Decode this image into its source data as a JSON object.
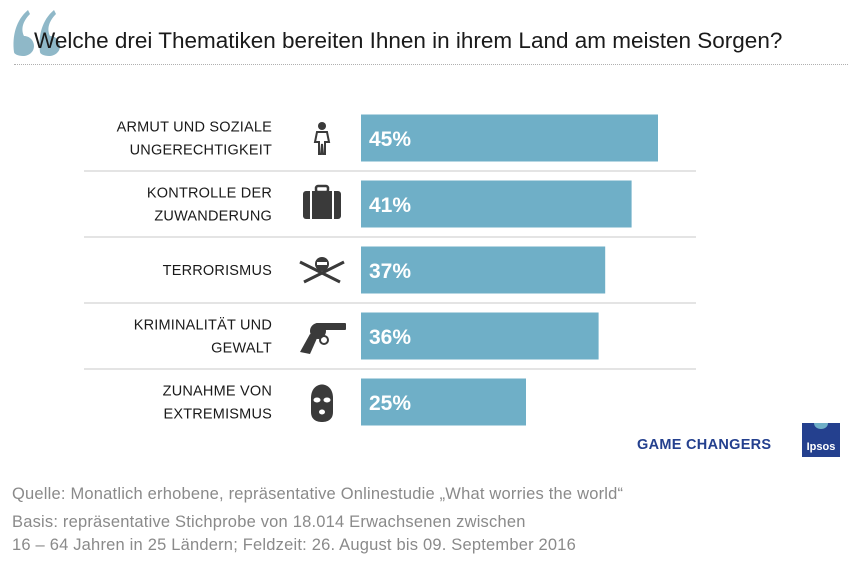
{
  "title": "Welche drei Thematiken bereiten Ihnen in ihrem Land am meisten Sorgen?",
  "brand": {
    "tagline": "GAME CHANGERS",
    "logo_text": "Ipsos"
  },
  "footer": {
    "source": "Quelle: Monatlich erhobene, repräsentative Onlinestudie „What worries the world“",
    "basis_line1": "Basis: repräsentative Stichprobe von 18.014 Erwachsenen zwischen",
    "basis_line2": "16 – 64 Jahren in 25 Ländern; Feldzeit: 26. August bis 09. September 2016"
  },
  "colors": {
    "bar": "#6fafc7",
    "icon": "#3a3a3a",
    "quote": "#8fb8c8",
    "brand": "#24408e"
  },
  "chart_data": {
    "type": "bar",
    "orientation": "horizontal",
    "categories": [
      [
        "ARMUT UND SOZIALE",
        "UNGERECHTIGKEIT"
      ],
      [
        "KONTROLLE DER",
        "ZUWANDERUNG"
      ],
      [
        "TERRORISMUS"
      ],
      [
        "KRIMINALITÄT UND",
        "GEWALT"
      ],
      [
        "ZUNAHME VON",
        "EXTREMISMUS"
      ]
    ],
    "icons": [
      "person-icon",
      "suitcase-icon",
      "crossed-rifles-icon",
      "revolver-icon",
      "balaclava-icon"
    ],
    "values": [
      45,
      41,
      37,
      36,
      25
    ],
    "value_labels": [
      "45%",
      "41%",
      "37%",
      "36%",
      "25%"
    ],
    "unit": "%",
    "xlim": [
      0,
      100
    ],
    "grid": false,
    "legend": "none"
  }
}
